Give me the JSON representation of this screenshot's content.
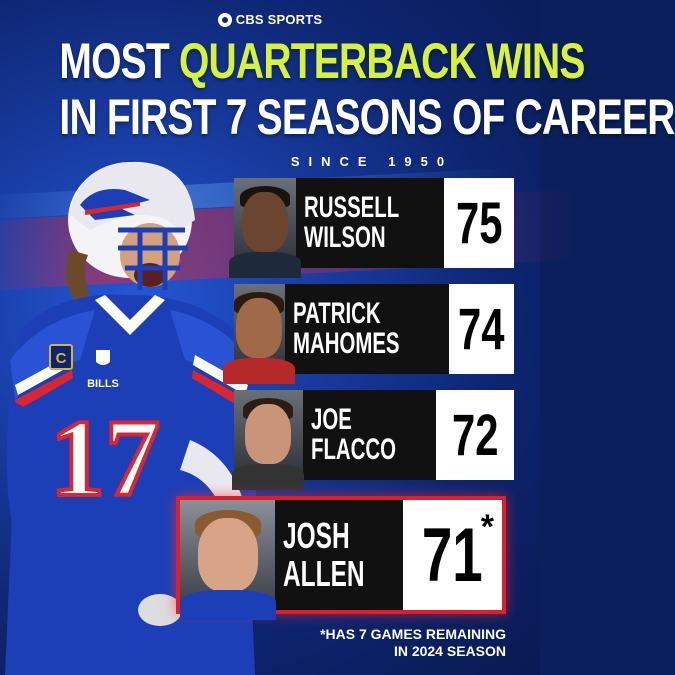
{
  "brand": "CBS SPORTS",
  "title": {
    "line1_a": "MOST ",
    "line1_b": "QUARTERBACK WINS",
    "line2": "IN FIRST 7 SEASONS OF CAREER"
  },
  "subtitle": "SINCE 1950",
  "colors": {
    "highlight": "#d7f23a",
    "accent_red": "#e01e2a",
    "background": "#173a9e"
  },
  "rankings": [
    {
      "first": "RUSSELL",
      "last": "WILSON",
      "wins": "75"
    },
    {
      "first": "PATRICK",
      "last": "MAHOMES",
      "wins": "74"
    },
    {
      "first": "JOE",
      "last": "FLACCO",
      "wins": "72"
    },
    {
      "first": "JOSH",
      "last": "ALLEN",
      "wins": "71",
      "mark": "*"
    }
  ],
  "player": {
    "team": "BILLS",
    "number": "17",
    "captain": "C"
  },
  "footnote": {
    "line1": "*HAS 7 GAMES REMAINING",
    "line2": "IN 2024 SEASON"
  }
}
